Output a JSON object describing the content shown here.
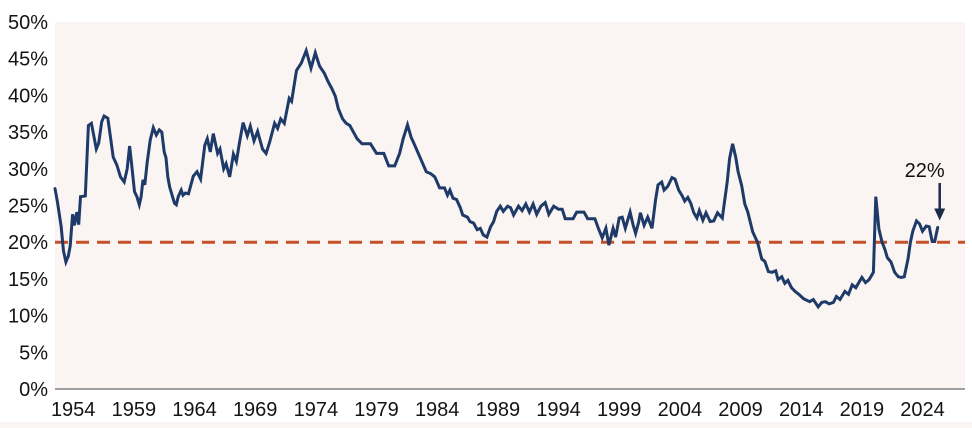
{
  "chart_data": {
    "type": "line",
    "xlabel": "",
    "ylabel": "",
    "x_tick_labels": [
      "1954",
      "1959",
      "1964",
      "1969",
      "1974",
      "1979",
      "1984",
      "1989",
      "1994",
      "1999",
      "2004",
      "2009",
      "2014",
      "2019",
      "2024"
    ],
    "y_tick_labels": [
      "0%",
      "5%",
      "10%",
      "15%",
      "20%",
      "25%",
      "30%",
      "35%",
      "40%",
      "45%",
      "50%"
    ],
    "ylim": [
      0,
      50
    ],
    "xlim": [
      1952.5,
      2027.5
    ],
    "grid": false,
    "legend": "none",
    "reference_line": {
      "value": 20,
      "style": "dashed"
    },
    "annotation": {
      "label": "22%",
      "x": 2025.25,
      "y": 22
    },
    "colors": {
      "line": "#1e3a68",
      "reference": "#c4512a",
      "plot_background": "#faf4f2",
      "axis": "#a0a0a0",
      "text": "#141414",
      "arrow": "#1c2b4a"
    },
    "series": [
      {
        "points": [
          [
            1952.5,
            27.3
          ],
          [
            1952.7,
            25.5
          ],
          [
            1953.0,
            22.2
          ],
          [
            1953.2,
            18.8
          ],
          [
            1953.4,
            17.3
          ],
          [
            1953.6,
            18.1
          ],
          [
            1953.75,
            19.5
          ],
          [
            1953.95,
            23.8
          ],
          [
            1954.1,
            22.3
          ],
          [
            1954.3,
            24.1
          ],
          [
            1954.45,
            22.4
          ],
          [
            1954.6,
            26.2
          ],
          [
            1955.0,
            26.3
          ],
          [
            1955.1,
            30.0
          ],
          [
            1955.25,
            35.9
          ],
          [
            1955.5,
            36.2
          ],
          [
            1955.7,
            34.5
          ],
          [
            1955.9,
            32.7
          ],
          [
            1956.1,
            33.5
          ],
          [
            1956.35,
            36.4
          ],
          [
            1956.55,
            37.2
          ],
          [
            1956.85,
            36.9
          ],
          [
            1957.1,
            34.0
          ],
          [
            1957.3,
            31.6
          ],
          [
            1957.6,
            30.5
          ],
          [
            1957.9,
            28.9
          ],
          [
            1958.2,
            28.2
          ],
          [
            1958.45,
            30.0
          ],
          [
            1958.65,
            33.1
          ],
          [
            1958.8,
            30.9
          ],
          [
            1959.05,
            26.9
          ],
          [
            1959.25,
            26.2
          ],
          [
            1959.45,
            25.1
          ],
          [
            1959.6,
            26.2
          ],
          [
            1959.75,
            28.5
          ],
          [
            1959.9,
            27.8
          ],
          [
            1960.1,
            30.9
          ],
          [
            1960.35,
            33.9
          ],
          [
            1960.6,
            35.6
          ],
          [
            1960.85,
            34.6
          ],
          [
            1961.1,
            35.3
          ],
          [
            1961.3,
            35.0
          ],
          [
            1961.5,
            32.3
          ],
          [
            1961.65,
            31.5
          ],
          [
            1961.8,
            28.9
          ],
          [
            1961.95,
            27.5
          ],
          [
            1962.15,
            26.4
          ],
          [
            1962.35,
            25.3
          ],
          [
            1962.5,
            25.1
          ],
          [
            1962.65,
            26.2
          ],
          [
            1962.9,
            27.1
          ],
          [
            1963.05,
            26.4
          ],
          [
            1963.25,
            26.7
          ],
          [
            1963.5,
            26.6
          ],
          [
            1963.9,
            29.0
          ],
          [
            1964.2,
            29.6
          ],
          [
            1964.5,
            28.6
          ],
          [
            1964.85,
            33.2
          ],
          [
            1965.05,
            34.1
          ],
          [
            1965.3,
            32.3
          ],
          [
            1965.55,
            34.8
          ],
          [
            1965.9,
            32.1
          ],
          [
            1966.1,
            32.7
          ],
          [
            1966.4,
            30.0
          ],
          [
            1966.6,
            30.7
          ],
          [
            1966.9,
            28.9
          ],
          [
            1967.2,
            32.0
          ],
          [
            1967.45,
            31.0
          ],
          [
            1967.7,
            33.5
          ],
          [
            1968.0,
            36.3
          ],
          [
            1968.35,
            34.5
          ],
          [
            1968.6,
            35.8
          ],
          [
            1968.9,
            33.8
          ],
          [
            1969.2,
            35.1
          ],
          [
            1969.6,
            32.7
          ],
          [
            1969.9,
            32.1
          ],
          [
            1970.2,
            33.7
          ],
          [
            1970.6,
            36.2
          ],
          [
            1970.85,
            35.5
          ],
          [
            1971.1,
            36.8
          ],
          [
            1971.4,
            36.2
          ],
          [
            1971.8,
            39.6
          ],
          [
            1972.0,
            39.2
          ],
          [
            1972.4,
            43.4
          ],
          [
            1972.8,
            44.4
          ],
          [
            1973.2,
            46.1
          ],
          [
            1973.6,
            43.7
          ],
          [
            1973.95,
            45.8
          ],
          [
            1974.3,
            44.0
          ],
          [
            1974.7,
            43.0
          ],
          [
            1975.0,
            41.9
          ],
          [
            1975.3,
            41.0
          ],
          [
            1975.6,
            39.9
          ],
          [
            1975.85,
            38.2
          ],
          [
            1976.2,
            36.8
          ],
          [
            1976.5,
            36.2
          ],
          [
            1976.8,
            35.9
          ],
          [
            1977.4,
            34.1
          ],
          [
            1977.8,
            33.4
          ],
          [
            1978.5,
            33.4
          ],
          [
            1979.0,
            32.1
          ],
          [
            1979.6,
            32.1
          ],
          [
            1980.0,
            30.4
          ],
          [
            1980.5,
            30.4
          ],
          [
            1980.9,
            32.1
          ],
          [
            1981.2,
            34.1
          ],
          [
            1981.55,
            36.0
          ],
          [
            1981.85,
            34.3
          ],
          [
            1982.1,
            33.4
          ],
          [
            1982.6,
            31.5
          ],
          [
            1983.1,
            29.6
          ],
          [
            1983.5,
            29.3
          ],
          [
            1983.8,
            28.9
          ],
          [
            1984.2,
            27.4
          ],
          [
            1984.6,
            27.4
          ],
          [
            1984.85,
            26.4
          ],
          [
            1985.05,
            27.1
          ],
          [
            1985.3,
            26.0
          ],
          [
            1985.6,
            25.8
          ],
          [
            1985.9,
            24.7
          ],
          [
            1986.1,
            23.7
          ],
          [
            1986.5,
            23.4
          ],
          [
            1986.7,
            22.8
          ],
          [
            1987.0,
            22.6
          ],
          [
            1987.3,
            21.7
          ],
          [
            1987.55,
            21.9
          ],
          [
            1987.8,
            21.0
          ],
          [
            1988.1,
            20.7
          ],
          [
            1988.4,
            22.1
          ],
          [
            1988.65,
            22.8
          ],
          [
            1988.9,
            24.2
          ],
          [
            1989.2,
            24.9
          ],
          [
            1989.45,
            24.2
          ],
          [
            1989.8,
            24.9
          ],
          [
            1990.05,
            24.7
          ],
          [
            1990.3,
            23.7
          ],
          [
            1990.7,
            24.9
          ],
          [
            1991.0,
            24.3
          ],
          [
            1991.3,
            25.2
          ],
          [
            1991.6,
            24.1
          ],
          [
            1991.9,
            25.2
          ],
          [
            1992.2,
            23.8
          ],
          [
            1992.55,
            24.9
          ],
          [
            1992.9,
            25.4
          ],
          [
            1993.2,
            23.8
          ],
          [
            1993.6,
            24.9
          ],
          [
            1994.0,
            24.5
          ],
          [
            1994.3,
            24.5
          ],
          [
            1994.55,
            23.2
          ],
          [
            1995.2,
            23.2
          ],
          [
            1995.5,
            24.1
          ],
          [
            1996.1,
            24.1
          ],
          [
            1996.4,
            23.2
          ],
          [
            1997.0,
            23.2
          ],
          [
            1997.3,
            21.8
          ],
          [
            1997.6,
            20.6
          ],
          [
            1997.9,
            21.9
          ],
          [
            1998.15,
            19.6
          ],
          [
            1998.5,
            21.9
          ],
          [
            1998.7,
            20.7
          ],
          [
            1999.0,
            23.3
          ],
          [
            1999.25,
            23.4
          ],
          [
            1999.5,
            21.9
          ],
          [
            1999.9,
            24.1
          ],
          [
            2000.15,
            22.3
          ],
          [
            2000.35,
            21.2
          ],
          [
            2000.6,
            22.7
          ],
          [
            2000.75,
            24.0
          ],
          [
            2001.05,
            22.3
          ],
          [
            2001.35,
            23.4
          ],
          [
            2001.7,
            21.9
          ],
          [
            2002.0,
            25.8
          ],
          [
            2002.2,
            27.8
          ],
          [
            2002.5,
            28.2
          ],
          [
            2002.7,
            27.1
          ],
          [
            2003.0,
            27.6
          ],
          [
            2003.35,
            28.8
          ],
          [
            2003.6,
            28.6
          ],
          [
            2003.9,
            27.1
          ],
          [
            2004.2,
            26.3
          ],
          [
            2004.4,
            25.6
          ],
          [
            2004.65,
            26.1
          ],
          [
            2004.9,
            25.3
          ],
          [
            2005.15,
            24.0
          ],
          [
            2005.4,
            23.3
          ],
          [
            2005.6,
            24.3
          ],
          [
            2005.9,
            23.0
          ],
          [
            2006.15,
            24.0
          ],
          [
            2006.5,
            22.8
          ],
          [
            2006.8,
            22.9
          ],
          [
            2007.1,
            24.0
          ],
          [
            2007.5,
            23.3
          ],
          [
            2007.9,
            28.2
          ],
          [
            2008.1,
            31.4
          ],
          [
            2008.35,
            33.4
          ],
          [
            2008.6,
            31.6
          ],
          [
            2008.8,
            29.6
          ],
          [
            2009.1,
            27.7
          ],
          [
            2009.35,
            25.2
          ],
          [
            2009.6,
            24.1
          ],
          [
            2010.0,
            21.4
          ],
          [
            2010.4,
            20.0
          ],
          [
            2010.75,
            17.7
          ],
          [
            2011.0,
            17.4
          ],
          [
            2011.3,
            16.0
          ],
          [
            2011.6,
            15.9
          ],
          [
            2011.9,
            16.1
          ],
          [
            2012.1,
            14.9
          ],
          [
            2012.4,
            15.3
          ],
          [
            2012.65,
            14.4
          ],
          [
            2012.9,
            14.8
          ],
          [
            2013.2,
            13.8
          ],
          [
            2013.5,
            13.3
          ],
          [
            2013.8,
            12.9
          ],
          [
            2014.2,
            12.3
          ],
          [
            2014.7,
            11.9
          ],
          [
            2015.0,
            12.2
          ],
          [
            2015.4,
            11.2
          ],
          [
            2015.7,
            11.8
          ],
          [
            2016.0,
            11.9
          ],
          [
            2016.3,
            11.6
          ],
          [
            2016.65,
            11.8
          ],
          [
            2016.9,
            12.6
          ],
          [
            2017.2,
            12.2
          ],
          [
            2017.6,
            13.3
          ],
          [
            2017.9,
            12.9
          ],
          [
            2018.2,
            14.2
          ],
          [
            2018.5,
            13.8
          ],
          [
            2019.0,
            15.2
          ],
          [
            2019.3,
            14.5
          ],
          [
            2019.6,
            14.9
          ],
          [
            2019.95,
            15.9
          ],
          [
            2020.15,
            26.2
          ],
          [
            2020.4,
            21.8
          ],
          [
            2020.65,
            20.1
          ],
          [
            2020.9,
            19.0
          ],
          [
            2021.1,
            17.9
          ],
          [
            2021.4,
            17.3
          ],
          [
            2021.7,
            15.9
          ],
          [
            2022.0,
            15.3
          ],
          [
            2022.25,
            15.2
          ],
          [
            2022.5,
            15.3
          ],
          [
            2022.8,
            17.7
          ],
          [
            2023.0,
            20.0
          ],
          [
            2023.2,
            21.5
          ],
          [
            2023.5,
            22.9
          ],
          [
            2023.75,
            22.5
          ],
          [
            2024.0,
            21.5
          ],
          [
            2024.3,
            22.2
          ],
          [
            2024.55,
            22.1
          ],
          [
            2024.8,
            20.1
          ],
          [
            2025.0,
            20.1
          ],
          [
            2025.25,
            22.0
          ]
        ]
      }
    ]
  }
}
